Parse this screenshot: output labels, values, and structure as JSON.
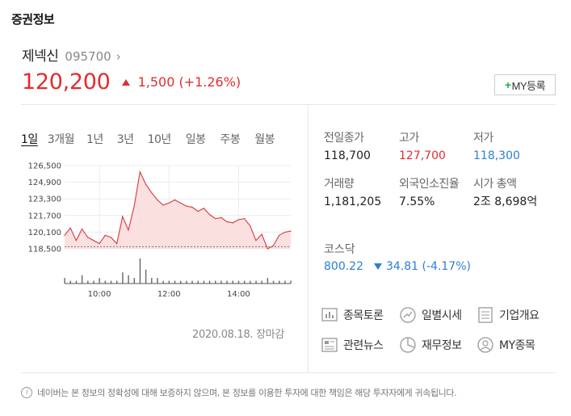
{
  "section_title": "증권정보",
  "stock": {
    "name": "제넥신",
    "code": "095700",
    "chevron": "›",
    "price": "120,200",
    "change": "1,500 (+1.26%)",
    "direction": "up"
  },
  "my_button": {
    "plus": "+",
    "label": "MY등록"
  },
  "period_tabs": [
    "1일",
    "3개월",
    "1년",
    "3년",
    "10년",
    "일봉",
    "주봉",
    "월봉"
  ],
  "chart_data": {
    "type": "area",
    "title": "",
    "y_ticks": [
      "126,500",
      "124,900",
      "123,300",
      "121,700",
      "120,100",
      "118,500"
    ],
    "x_ticks": [
      "10:00",
      "12:00",
      "14:00"
    ],
    "ylim": [
      118500,
      126500
    ],
    "prev_close": 118700,
    "x": [
      "09:00",
      "09:10",
      "09:20",
      "09:30",
      "09:40",
      "09:50",
      "10:00",
      "10:10",
      "10:20",
      "10:30",
      "10:40",
      "10:50",
      "11:00",
      "11:10",
      "11:20",
      "11:30",
      "11:40",
      "11:50",
      "12:00",
      "12:10",
      "12:20",
      "12:30",
      "12:40",
      "12:50",
      "13:00",
      "13:10",
      "13:20",
      "13:30",
      "13:40",
      "13:50",
      "14:00",
      "14:10",
      "14:20",
      "14:30",
      "14:40",
      "14:50",
      "15:00",
      "15:10",
      "15:20",
      "15:30"
    ],
    "price": [
      119800,
      120500,
      119300,
      120400,
      119600,
      119300,
      119000,
      119800,
      119600,
      119000,
      121600,
      120300,
      122600,
      125900,
      124700,
      123900,
      123200,
      122700,
      122900,
      123200,
      122900,
      122600,
      122500,
      122100,
      122400,
      121800,
      121400,
      121500,
      121100,
      121000,
      121300,
      121400,
      120700,
      119300,
      119900,
      118500,
      118800,
      119800,
      120100,
      120200
    ],
    "volume": [
      2,
      1,
      1,
      3,
      1,
      1,
      2,
      1,
      1,
      1,
      4,
      3,
      2,
      9,
      5,
      2,
      2,
      1,
      1,
      1,
      1,
      1,
      1,
      1,
      1,
      1,
      1,
      1,
      1,
      1,
      1,
      1,
      1,
      1,
      1,
      2,
      1,
      1,
      1,
      1
    ],
    "date_label": "2020.08.18. 장마감"
  },
  "stats": {
    "prev_close": {
      "label": "전일종가",
      "value": "118,700"
    },
    "high": {
      "label": "고가",
      "value": "127,700"
    },
    "low": {
      "label": "저가",
      "value": "118,300"
    },
    "volume": {
      "label": "거래량",
      "value": "1,181,205"
    },
    "foreign": {
      "label": "외국인소진율",
      "value": "7.55%"
    },
    "market_cap": {
      "label": "시가 총액",
      "value": "2조 8,698억"
    }
  },
  "index": {
    "name": "코스닥",
    "value": "800.22",
    "change": "34.81 (-4.17%)",
    "direction": "down"
  },
  "links": [
    "종목토론",
    "일별시세",
    "기업개요",
    "관련뉴스",
    "재무정보",
    "MY종목"
  ],
  "notice": "네이버는 본 정보의 정확성에 대해 보증하지 않으며, 본 정보를 이용한 투자에 대한 책임은 해당 투자자에게 귀속됩니다.",
  "colors": {
    "up": "#e12d2d",
    "down": "#2a7fd4",
    "plus": "#1fae51"
  }
}
